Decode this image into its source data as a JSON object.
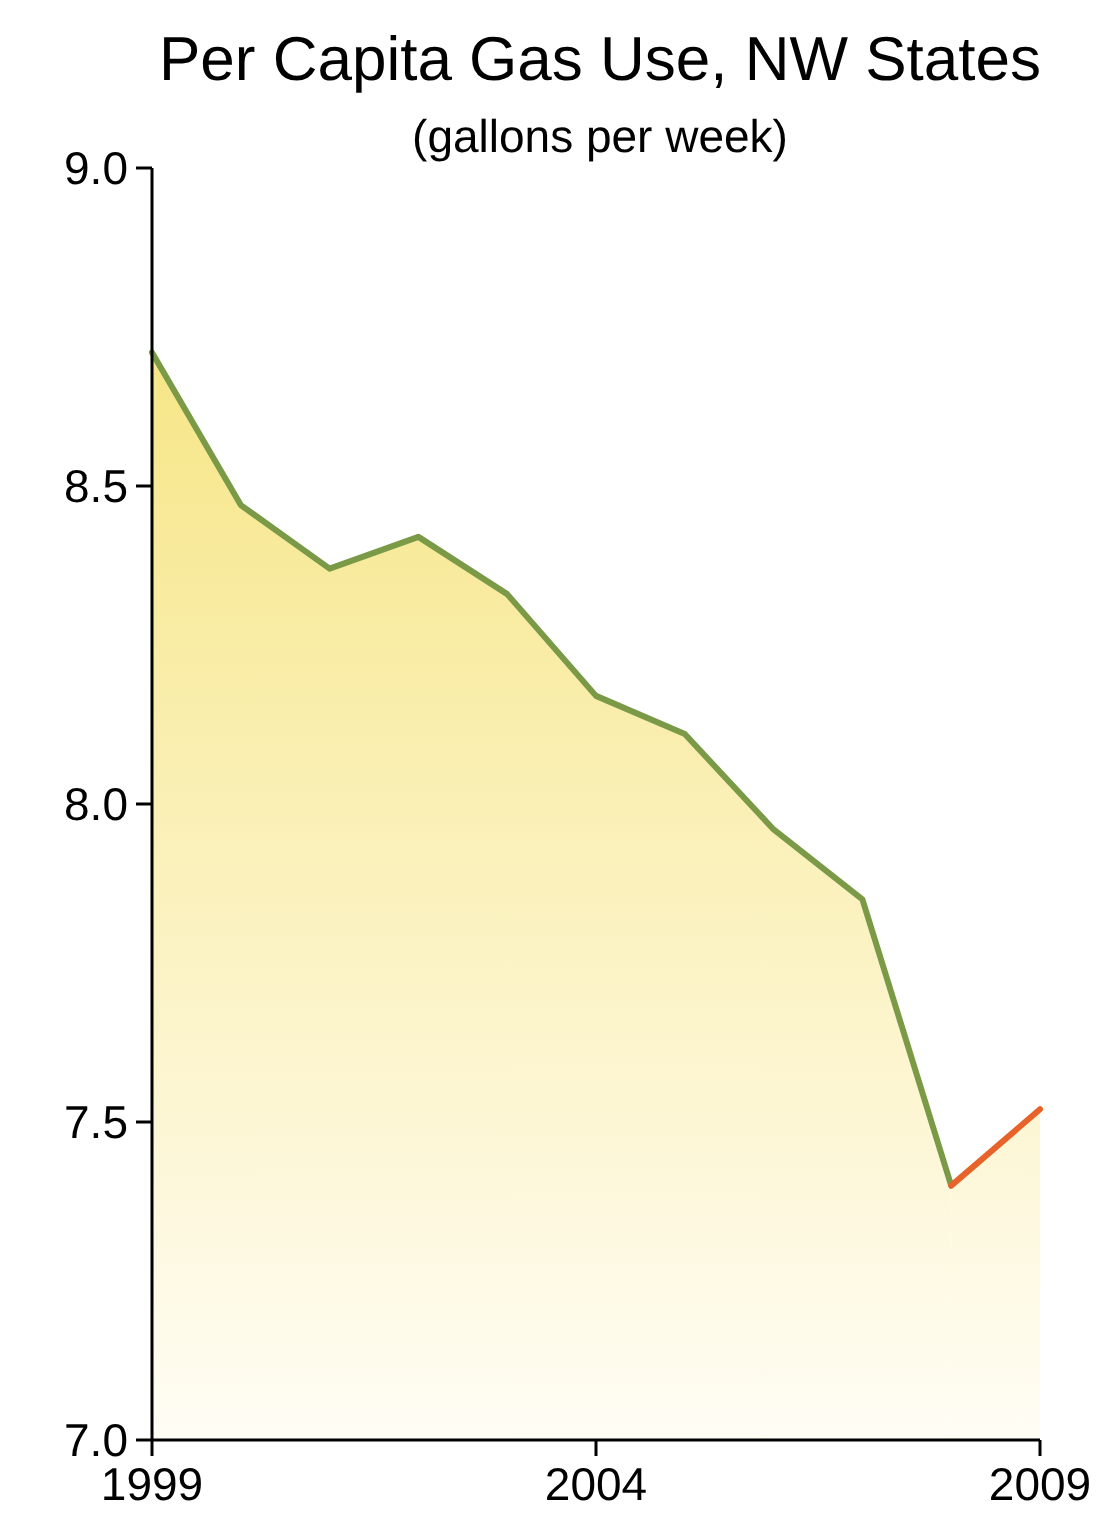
{
  "chart_data": {
    "type": "area",
    "title": "Per Capita Gas Use, NW States",
    "subtitle": "(gallons per week)",
    "x": [
      1999,
      2000,
      2001,
      2002,
      2003,
      2004,
      2005,
      2006,
      2007,
      2008,
      2009
    ],
    "series": [
      {
        "color": "#7a9a48",
        "values": [
          8.71,
          8.47,
          8.37,
          8.42,
          8.33,
          8.17,
          8.11,
          7.96,
          7.85,
          7.4,
          null
        ]
      },
      {
        "color": "#e8632a",
        "values": [
          null,
          null,
          null,
          null,
          null,
          null,
          null,
          null,
          null,
          7.4,
          7.52
        ]
      }
    ],
    "xlim": [
      1999,
      2009
    ],
    "xticks": [
      1999,
      2004,
      2009
    ],
    "ylim": [
      7,
      9
    ],
    "yticks": [
      {
        "value": 7,
        "label": "7.0"
      },
      {
        "value": 7.5,
        "label": "7.5"
      },
      {
        "value": 8,
        "label": "8.0"
      },
      {
        "value": 8.5,
        "label": "8.5"
      },
      {
        "value": 9,
        "label": "9.0"
      }
    ],
    "grid": false
  }
}
